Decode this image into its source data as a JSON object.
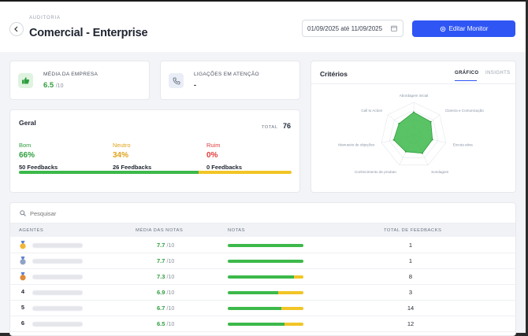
{
  "header": {
    "breadcrumb": "AUDITORIA",
    "title": "Comercial - Enterprise",
    "date_range": "01/09/2025 até 11/09/2025",
    "edit_label": "Editar Monitor"
  },
  "kpis": {
    "company_avg": {
      "label": "MÉDIA DA EMPRESA",
      "value": "6.5",
      "suffix": "/10",
      "icon": "thumbs-up-icon"
    },
    "calls_attention": {
      "label": "LIGAÇÕES EM ATENÇÃO",
      "value": "-",
      "icon": "phone-icon"
    }
  },
  "general": {
    "title": "Geral",
    "total_label": "TOTAL",
    "total_value": "76",
    "good": {
      "label": "Bom",
      "pct": "66%",
      "feedbacks": "50 Feedbacks",
      "color": "#3cb94a"
    },
    "neutral": {
      "label": "Neutro",
      "pct": "34%",
      "feedbacks": "26 Feedbacks",
      "color": "#f2c526"
    },
    "bad": {
      "label": "Ruim",
      "pct": "0%",
      "feedbacks": "0 Feedbacks",
      "color": "#e23b3b"
    },
    "bar": {
      "good": 0.66,
      "neutral": 0.34,
      "bad": 0.0
    }
  },
  "criteria": {
    "title": "Critérios",
    "tabs": [
      {
        "label": "GRÁFICO",
        "active": true
      },
      {
        "label": "INSIGHTS",
        "active": false
      }
    ],
    "chart_data": {
      "type": "radar",
      "axes": [
        "Abordagem inicial",
        "Clareza e Comunicação",
        "Escuta ativa",
        "Sondagem",
        "Conhecimento de produto",
        "Manuseio de objeções",
        "Call to Action"
      ],
      "values": [
        0.7,
        0.66,
        0.58,
        0.6,
        0.55,
        0.62,
        0.57
      ],
      "range": [
        0,
        1
      ],
      "fill_color": "#3cb94a"
    }
  },
  "table": {
    "search_placeholder": "Pesquisar",
    "headers": {
      "agents": "AGENTES",
      "avg": "MÉDIA DAS NOTAS",
      "notes": "NOTAS",
      "total": "TOTAL DE FEEDBACKS"
    },
    "rows": [
      {
        "rank": "",
        "medal": "gold",
        "score": "7.7",
        "suffix": "/10",
        "good": 1.0,
        "neutral": 0.0,
        "total": "1"
      },
      {
        "rank": "",
        "medal": "silver",
        "score": "7.7",
        "suffix": "/10",
        "good": 1.0,
        "neutral": 0.0,
        "total": "1"
      },
      {
        "rank": "",
        "medal": "bronze",
        "score": "7.3",
        "suffix": "/10",
        "good": 0.87,
        "neutral": 0.13,
        "total": "8"
      },
      {
        "rank": "4",
        "medal": "",
        "score": "6.9",
        "suffix": "/10",
        "good": 0.67,
        "neutral": 0.33,
        "total": "3"
      },
      {
        "rank": "5",
        "medal": "",
        "score": "6.7",
        "suffix": "/10",
        "good": 0.71,
        "neutral": 0.29,
        "total": "14"
      },
      {
        "rank": "6",
        "medal": "",
        "score": "6.5",
        "suffix": "/10",
        "good": 0.75,
        "neutral": 0.25,
        "total": "12"
      }
    ]
  },
  "colors": {
    "accent": "#2f55f4",
    "good": "#3cb94a",
    "neutral": "#f2c526",
    "score": "#2e9e3e"
  }
}
